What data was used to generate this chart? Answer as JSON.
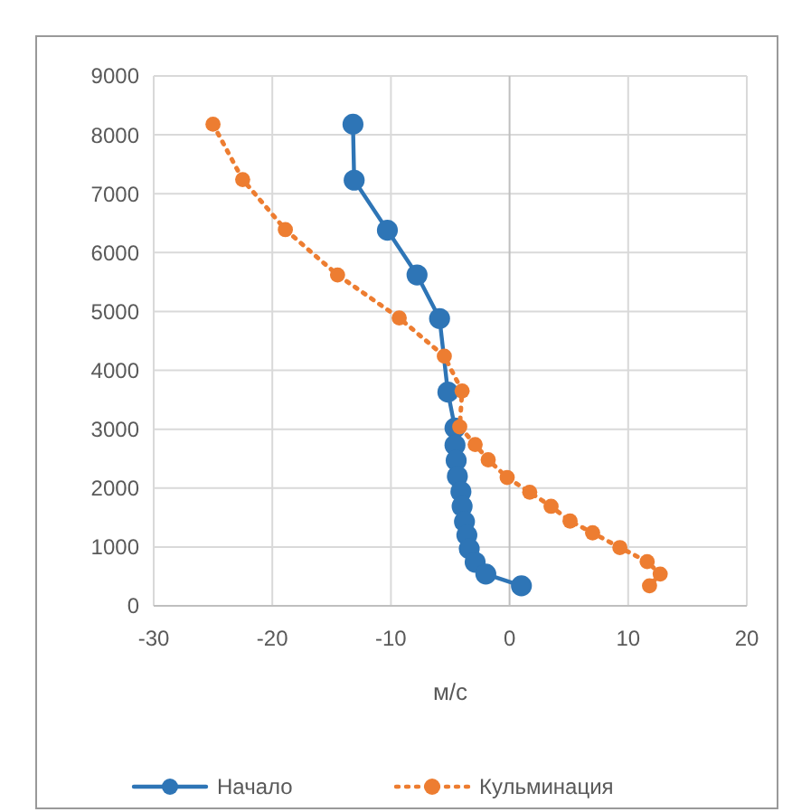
{
  "chart_data": {
    "type": "line",
    "xlabel": "м/с",
    "xlim": [
      -30,
      20
    ],
    "xticks": [
      -30,
      -20,
      -10,
      0,
      10,
      20
    ],
    "ylim": [
      0,
      9000
    ],
    "yticks": [
      0,
      1000,
      2000,
      3000,
      4000,
      5000,
      6000,
      7000,
      8000,
      9000
    ],
    "grid": true,
    "legend": "bottom",
    "marker": "circle",
    "series": [
      {
        "name": "Начало",
        "color": "#2e75b6",
        "line_style": "solid",
        "x": [
          -13.2,
          -13.1,
          -10.3,
          -7.8,
          -5.9,
          -5.5,
          -5.2,
          -4.6,
          -4.6,
          -4.5,
          -4.4,
          -4.1,
          -4.0,
          -3.8,
          -3.6,
          -3.4,
          -2.9,
          -2.0,
          1.0
        ],
        "values": [
          8180,
          7230,
          6380,
          5620,
          4880,
          null,
          3630,
          3020,
          2730,
          2470,
          2200,
          1940,
          1690,
          1430,
          1200,
          970,
          740,
          540,
          340
        ]
      },
      {
        "name": "Кульминация",
        "color": "#ed7d31",
        "line_style": "dotted",
        "x": [
          -25.0,
          -22.5,
          -18.9,
          -14.5,
          -9.3,
          -5.5,
          -4.0,
          -4.2,
          -2.9,
          -1.8,
          -0.2,
          1.7,
          3.5,
          5.1,
          7.0,
          9.3,
          11.6,
          12.7,
          11.8
        ],
        "values": [
          8180,
          7240,
          6390,
          5620,
          4890,
          4240,
          3650,
          3040,
          2740,
          2480,
          2180,
          1930,
          1690,
          1440,
          1240,
          990,
          750,
          540,
          340
        ]
      }
    ]
  }
}
